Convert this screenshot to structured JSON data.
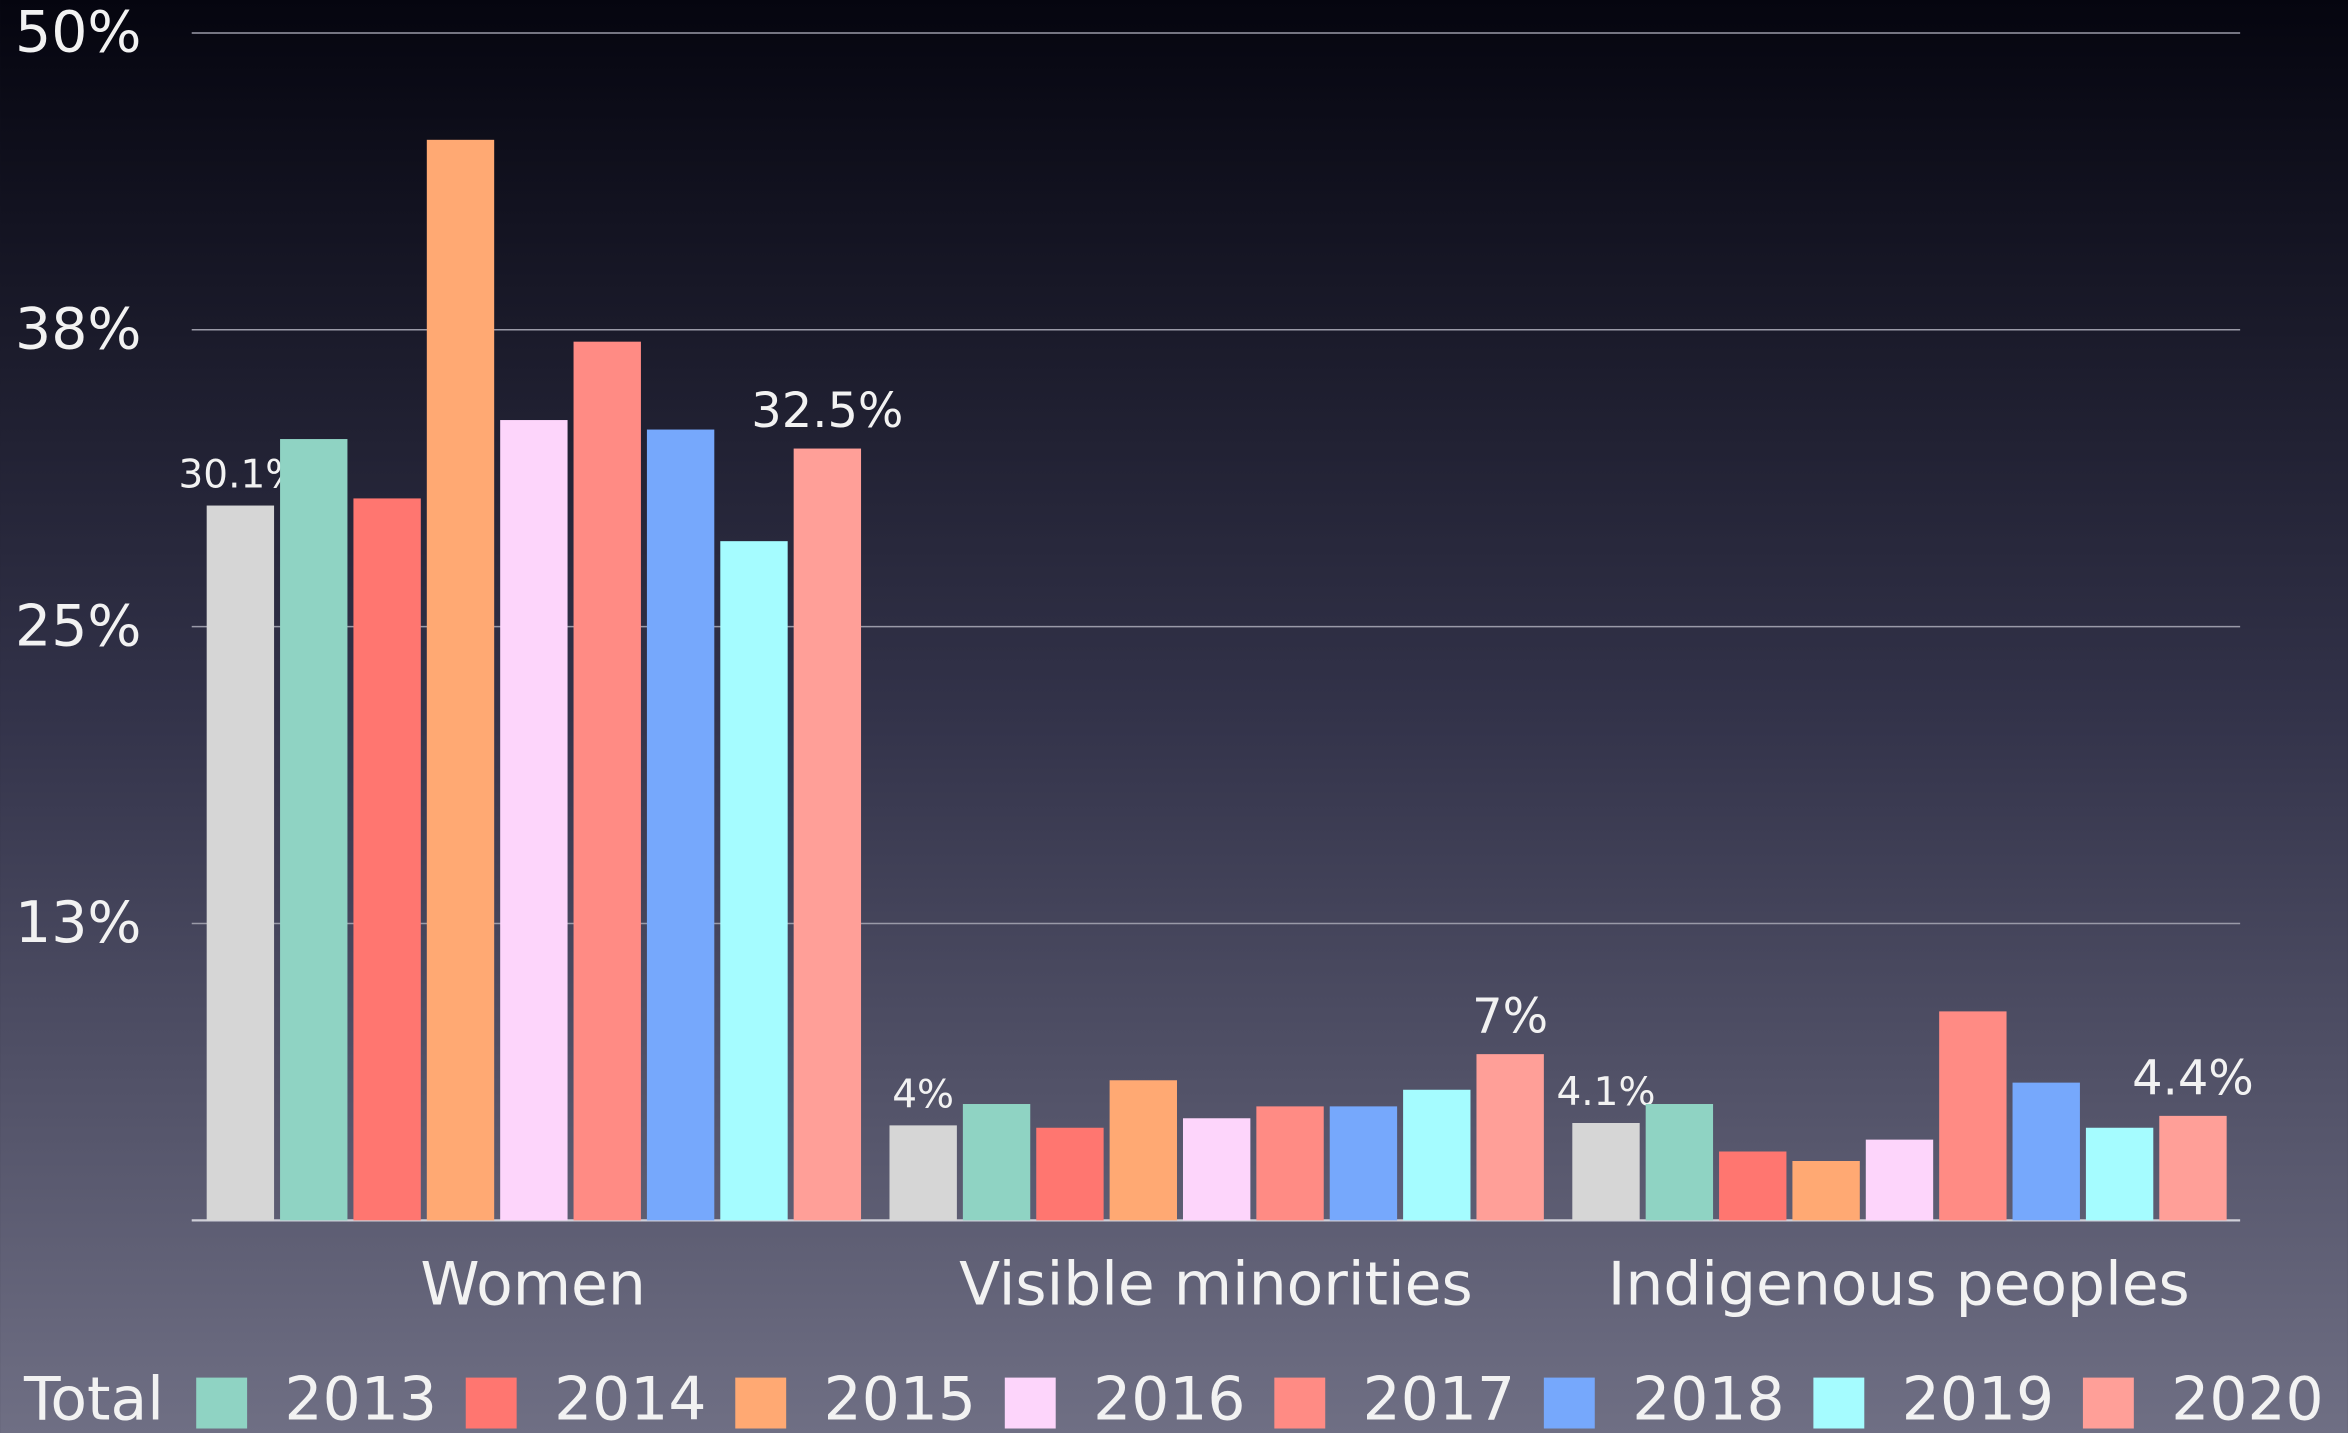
{
  "chart_data": {
    "type": "bar",
    "categories": [
      "Women",
      "Visible minorities",
      "Indigenous peoples"
    ],
    "series": [
      {
        "name": "Total",
        "color": "#d6d6d6",
        "values": [
          30.1,
          4,
          4.1
        ],
        "value_labels": [
          "30.1%",
          "4%",
          "4.1%"
        ]
      },
      {
        "name": "2013",
        "color": "#8fd3c3",
        "values": [
          32.9,
          4.9,
          4.9
        ]
      },
      {
        "name": "2014",
        "color": "#ff7670",
        "values": [
          30.4,
          3.9,
          2.9
        ]
      },
      {
        "name": "2015",
        "color": "#ffa973",
        "values": [
          45.5,
          5.9,
          2.5
        ]
      },
      {
        "name": "2016",
        "color": "#fdd5fb",
        "values": [
          33.7,
          4.3,
          3.4
        ]
      },
      {
        "name": "2017",
        "color": "#ff8b84",
        "values": [
          37.0,
          4.8,
          8.8
        ]
      },
      {
        "name": "2018",
        "color": "#76a8fc",
        "values": [
          33.3,
          4.8,
          5.8
        ]
      },
      {
        "name": "2019",
        "color": "#a5fcff",
        "values": [
          28.6,
          5.5,
          3.9
        ]
      },
      {
        "name": "2020",
        "color": "#ff9f98",
        "values": [
          32.5,
          7,
          4.4
        ],
        "value_labels": [
          "32.5%",
          "7%",
          "4.4%"
        ]
      }
    ],
    "ylim": [
      0,
      50
    ],
    "yticks": [
      {
        "value": 12.5,
        "label": "13%"
      },
      {
        "value": 25,
        "label": "25%"
      },
      {
        "value": 37.5,
        "label": "38%"
      },
      {
        "value": 50,
        "label": "50%"
      }
    ],
    "grid": true,
    "legend": "bottom"
  }
}
